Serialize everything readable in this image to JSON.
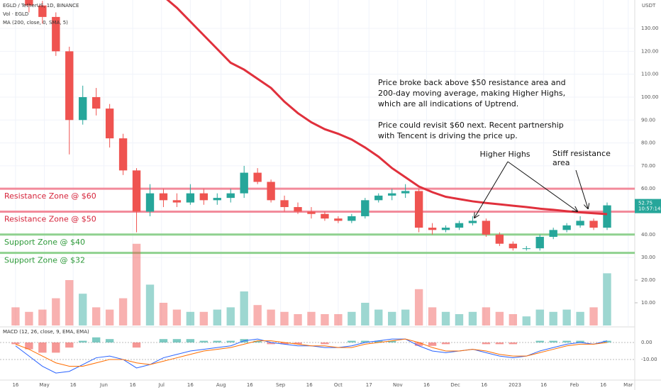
{
  "chart_data": {
    "type": "candlestick",
    "title": "EGLD / TetherUS, 1D, BINANCE",
    "volume_title": "Vol · EGLD",
    "ma_title": "MA (200, close, 0, SMA, 5)",
    "macd_title": "MACD (12, 26, close, 9, EMA, EMA)",
    "currency": "USDT",
    "countdown": "10:57:14",
    "x": [
      0,
      7,
      14,
      21,
      28,
      35,
      42,
      49,
      56,
      63,
      70,
      77,
      84,
      91,
      98,
      105,
      112,
      119,
      126,
      133,
      140,
      147,
      154,
      161,
      168,
      175,
      182,
      189,
      196,
      203,
      210,
      217,
      224,
      231,
      238,
      245,
      252,
      259,
      266,
      273,
      280,
      287,
      294,
      301,
      308
    ],
    "open": [
      152,
      148,
      140,
      135,
      120,
      90,
      100,
      95,
      82,
      68,
      50,
      58,
      55,
      54,
      58,
      55,
      56,
      58,
      67,
      63,
      55,
      52,
      50,
      49,
      47,
      46,
      48,
      55,
      57,
      58,
      59,
      43,
      42,
      43,
      45,
      46,
      40,
      36,
      34,
      34,
      39,
      42,
      44,
      46,
      43
    ],
    "high": [
      158,
      150,
      142,
      137,
      122,
      105,
      104,
      97,
      84,
      69,
      62,
      60,
      58,
      62,
      60,
      58,
      60,
      70,
      69,
      64,
      57,
      54,
      52,
      50,
      48,
      49,
      56,
      58,
      60,
      62,
      60,
      45,
      44,
      46,
      48,
      47,
      41,
      37,
      35,
      40,
      43,
      45,
      48,
      47,
      54
    ],
    "low": [
      146,
      137,
      132,
      118,
      75,
      88,
      92,
      78,
      66,
      41,
      48,
      52,
      52,
      53,
      53,
      53,
      54,
      56,
      62,
      54,
      50,
      49,
      47,
      46,
      45,
      45,
      47,
      54,
      55,
      56,
      41,
      40,
      41,
      42,
      44,
      39,
      35,
      33,
      33,
      33,
      38,
      41,
      43,
      42,
      42
    ],
    "close": [
      148,
      140,
      135,
      120,
      90,
      100,
      95,
      82,
      68,
      50,
      58,
      55,
      54,
      58,
      55,
      56,
      58,
      67,
      63,
      55,
      52,
      50,
      49,
      47,
      46,
      48,
      55,
      57,
      58,
      59,
      43,
      42,
      43,
      45,
      46,
      40,
      36,
      34,
      34,
      39,
      42,
      44,
      46,
      43,
      52.75
    ],
    "ma": [
      null,
      null,
      null,
      null,
      null,
      null,
      null,
      null,
      null,
      null,
      null,
      144,
      139,
      133,
      127,
      121,
      115,
      112,
      108,
      104,
      98,
      93,
      89,
      86,
      84,
      81.5,
      78,
      74,
      69,
      65,
      61,
      58.5,
      56.5,
      55.5,
      54.5,
      53.8,
      53.2,
      52.6,
      52,
      51.3,
      50.8,
      50.2,
      49.7,
      49.3,
      48.9
    ],
    "ma_color": "#e0303c",
    "volume": [
      8,
      6,
      7,
      12,
      20,
      14,
      8,
      7,
      12,
      36,
      18,
      10,
      7,
      6,
      6,
      7,
      8,
      15,
      9,
      7,
      6,
      5,
      6,
      5,
      5,
      6,
      10,
      7,
      6,
      7,
      16,
      8,
      6,
      5,
      6,
      8,
      6,
      5,
      4,
      7,
      6,
      7,
      6,
      8,
      23
    ],
    "macd": [
      -2,
      -8,
      -14,
      -18,
      -17,
      -13,
      -9,
      -8,
      -10,
      -15,
      -13,
      -9,
      -7,
      -5,
      -4,
      -3,
      -2,
      1,
      2,
      0,
      -1,
      -2,
      -2,
      -3,
      -3,
      -2,
      0,
      1,
      2,
      2,
      -2,
      -5,
      -6,
      -5,
      -4,
      -6,
      -8,
      -9,
      -8,
      -5,
      -3,
      -1,
      0,
      -1,
      1
    ],
    "signal": [
      -1,
      -4,
      -8,
      -12,
      -14,
      -14,
      -12,
      -10,
      -10,
      -12,
      -13,
      -11,
      -9,
      -7,
      -5,
      -4,
      -3,
      -1,
      1,
      1,
      0,
      -1,
      -2,
      -2,
      -3,
      -3,
      -1,
      0,
      1,
      2,
      0,
      -3,
      -5,
      -5,
      -4,
      -5,
      -7,
      -8,
      -8,
      -6,
      -4,
      -2,
      -1,
      -1,
      0
    ],
    "histogram": [
      -1,
      -4,
      -6,
      -6,
      -3,
      1,
      3,
      2,
      0,
      -3,
      0,
      2,
      2,
      2,
      1,
      1,
      1,
      2,
      1,
      -1,
      -1,
      -1,
      0,
      -1,
      0,
      1,
      1,
      1,
      1,
      0,
      -2,
      -2,
      -1,
      0,
      0,
      -1,
      -1,
      -1,
      0,
      1,
      1,
      1,
      1,
      0,
      1
    ],
    "up_color": "#26a69a",
    "down_color": "#ef5350",
    "macd_color": "#2962ff",
    "signal_color": "#ff6d00",
    "xlim": [
      -8.1,
      322.4
    ],
    "ylim": [
      0,
      142.4
    ],
    "volume_ylim": [
      0,
      40
    ],
    "macd_ylim": [
      -21.7,
      8.75
    ],
    "xticks": [
      {
        "value": 0,
        "label": "16"
      },
      {
        "value": 15,
        "label": "May"
      },
      {
        "value": 30,
        "label": "16"
      },
      {
        "value": 46,
        "label": "Jun"
      },
      {
        "value": 61,
        "label": "16"
      },
      {
        "value": 76,
        "label": "Jul"
      },
      {
        "value": 91,
        "label": "16"
      },
      {
        "value": 107,
        "label": "Aug"
      },
      {
        "value": 122,
        "label": "16"
      },
      {
        "value": 138,
        "label": "Sep"
      },
      {
        "value": 153,
        "label": "16"
      },
      {
        "value": 168,
        "label": "Oct"
      },
      {
        "value": 184,
        "label": "17"
      },
      {
        "value": 199,
        "label": "Nov"
      },
      {
        "value": 214,
        "label": "16"
      },
      {
        "value": 229,
        "label": "Dec"
      },
      {
        "value": 244,
        "label": "16"
      },
      {
        "value": 260,
        "label": "2023"
      },
      {
        "value": 275,
        "label": "16"
      },
      {
        "value": 291,
        "label": "Feb"
      },
      {
        "value": 306,
        "label": "16"
      },
      {
        "value": 319,
        "label": "Mar"
      }
    ],
    "yticks": [
      {
        "value": 130,
        "label": "130.00"
      },
      {
        "value": 120,
        "label": "120.00"
      },
      {
        "value": 110,
        "label": "110.00"
      },
      {
        "value": 100,
        "label": "100.00"
      },
      {
        "value": 90,
        "label": "90.00"
      },
      {
        "value": 80,
        "label": "80.00"
      },
      {
        "value": 70,
        "label": "70.00"
      },
      {
        "value": 60,
        "label": "60.00"
      },
      {
        "value": 50,
        "label": "50.00"
      },
      {
        "value": 40,
        "label": "40.00"
      },
      {
        "value": 30,
        "label": "30.00"
      }
    ],
    "volume_ticks": [
      {
        "value": 20,
        "label": "20.00"
      },
      {
        "value": 10,
        "label": "10.00"
      }
    ],
    "macd_ticks": [
      {
        "value": 0,
        "label": "0.00"
      },
      {
        "value": -10,
        "label": "-10.00"
      }
    ],
    "zones": [
      {
        "label": "Resistance Zone @ $60",
        "level": 60,
        "color": "#f28b9b",
        "text_color": "#d6243b"
      },
      {
        "label": "Resistance Zone @ $50",
        "level": 50,
        "color": "#f28b9b",
        "text_color": "#d6243b"
      },
      {
        "label": "Support Zone @ $40",
        "level": 40,
        "color": "#8fd18f",
        "text_color": "#2e9a3a"
      },
      {
        "label": "Support Zone @ $32",
        "level": 32,
        "color": "#8fd18f",
        "text_color": "#2e9a3a"
      }
    ],
    "annotation_lines": [
      "Price broke back above $50 resistance area and",
      "200-day moving average, making Higher Highs,",
      "which are all indications of Uptrend.",
      "",
      "Price could revisit $60 next. Recent partnership",
      "with Tencent is driving the price up."
    ],
    "higher_highs": "Higher Highs",
    "stiff_lines": [
      "Stiff resistance",
      "area"
    ]
  }
}
